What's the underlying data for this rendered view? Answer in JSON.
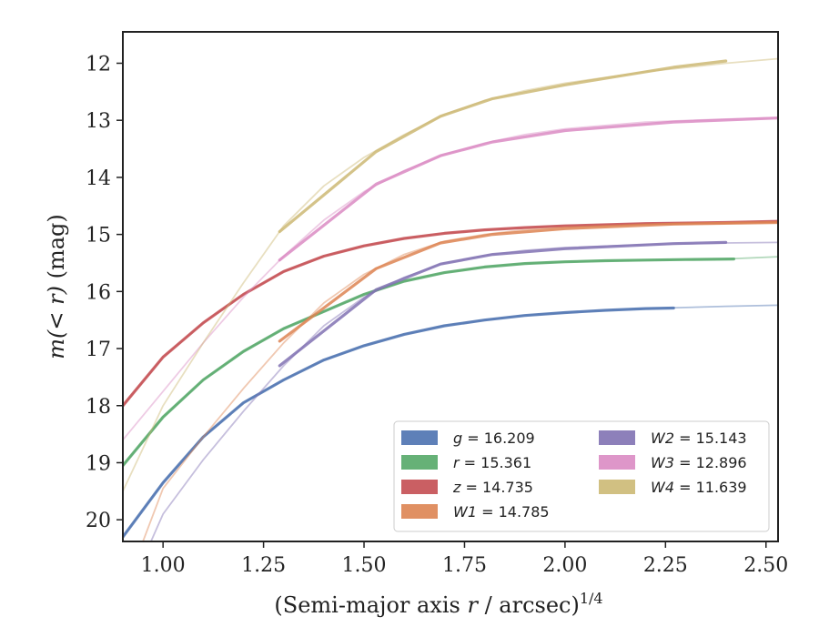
{
  "chart_data": {
    "type": "line",
    "title": "",
    "xlabel": "(Semi-major axis r / arcsec)",
    "xlabel_exponent": "1/4",
    "ylabel": "m(< r) (mag)",
    "xlim": [
      0.9,
      2.53
    ],
    "ylim": [
      20.38,
      11.45
    ],
    "y_inverted": true,
    "x_ticks": [
      "1.00",
      "1.25",
      "1.50",
      "1.75",
      "2.00",
      "2.25",
      "2.50"
    ],
    "y_ticks": [
      "12",
      "13",
      "14",
      "15",
      "16",
      "17",
      "18",
      "19",
      "20"
    ],
    "grid": false,
    "legend_position": "lower-right",
    "legend_columns": 2,
    "series": [
      {
        "name": "g = 16.209",
        "color": "#4c72b0",
        "thick": [
          [
            0.9,
            20.3
          ],
          [
            1.0,
            19.35
          ],
          [
            1.1,
            18.55
          ],
          [
            1.2,
            17.95
          ],
          [
            1.3,
            17.55
          ],
          [
            1.4,
            17.2
          ],
          [
            1.5,
            16.95
          ],
          [
            1.6,
            16.75
          ],
          [
            1.7,
            16.6
          ],
          [
            1.8,
            16.5
          ],
          [
            1.9,
            16.42
          ],
          [
            2.0,
            16.37
          ],
          [
            2.1,
            16.33
          ],
          [
            2.2,
            16.3
          ],
          [
            2.27,
            16.29
          ]
        ],
        "model": [
          [
            0.9,
            20.3
          ],
          [
            1.0,
            19.35
          ],
          [
            1.1,
            18.55
          ],
          [
            1.2,
            17.95
          ],
          [
            1.3,
            17.55
          ],
          [
            1.4,
            17.2
          ],
          [
            1.5,
            16.95
          ],
          [
            1.6,
            16.75
          ],
          [
            1.7,
            16.6
          ],
          [
            1.8,
            16.5
          ],
          [
            1.9,
            16.42
          ],
          [
            2.0,
            16.37
          ],
          [
            2.1,
            16.33
          ],
          [
            2.2,
            16.3
          ],
          [
            2.3,
            16.28
          ],
          [
            2.4,
            16.26
          ],
          [
            2.53,
            16.24
          ]
        ]
      },
      {
        "name": "r = 15.361",
        "color": "#55a868",
        "thick": [
          [
            0.9,
            19.05
          ],
          [
            1.0,
            18.2
          ],
          [
            1.1,
            17.55
          ],
          [
            1.2,
            17.05
          ],
          [
            1.3,
            16.65
          ],
          [
            1.4,
            16.35
          ],
          [
            1.5,
            16.05
          ],
          [
            1.6,
            15.82
          ],
          [
            1.7,
            15.67
          ],
          [
            1.8,
            15.57
          ],
          [
            1.9,
            15.51
          ],
          [
            2.0,
            15.48
          ],
          [
            2.1,
            15.46
          ],
          [
            2.2,
            15.45
          ],
          [
            2.3,
            15.44
          ],
          [
            2.42,
            15.43
          ]
        ],
        "model": [
          [
            0.9,
            19.05
          ],
          [
            1.0,
            18.2
          ],
          [
            1.1,
            17.55
          ],
          [
            1.2,
            17.05
          ],
          [
            1.3,
            16.65
          ],
          [
            1.4,
            16.35
          ],
          [
            1.5,
            16.05
          ],
          [
            1.6,
            15.82
          ],
          [
            1.7,
            15.67
          ],
          [
            1.8,
            15.57
          ],
          [
            1.9,
            15.51
          ],
          [
            2.0,
            15.48
          ],
          [
            2.1,
            15.46
          ],
          [
            2.2,
            15.45
          ],
          [
            2.3,
            15.44
          ],
          [
            2.4,
            15.43
          ],
          [
            2.53,
            15.39
          ]
        ]
      },
      {
        "name": "z = 14.735",
        "color": "#c44e52",
        "thick": [
          [
            0.9,
            18.0
          ],
          [
            1.0,
            17.15
          ],
          [
            1.1,
            16.55
          ],
          [
            1.2,
            16.05
          ],
          [
            1.3,
            15.65
          ],
          [
            1.4,
            15.38
          ],
          [
            1.5,
            15.2
          ],
          [
            1.6,
            15.07
          ],
          [
            1.7,
            14.98
          ],
          [
            1.8,
            14.92
          ],
          [
            1.9,
            14.88
          ],
          [
            2.0,
            14.85
          ],
          [
            2.1,
            14.83
          ],
          [
            2.2,
            14.81
          ],
          [
            2.3,
            14.8
          ],
          [
            2.4,
            14.79
          ],
          [
            2.53,
            14.77
          ]
        ],
        "model": [
          [
            0.9,
            18.0
          ],
          [
            1.0,
            17.15
          ],
          [
            1.1,
            16.55
          ],
          [
            1.2,
            16.05
          ],
          [
            1.3,
            15.65
          ],
          [
            1.4,
            15.38
          ],
          [
            1.5,
            15.2
          ],
          [
            1.6,
            15.07
          ],
          [
            1.7,
            14.98
          ],
          [
            1.8,
            14.92
          ],
          [
            1.9,
            14.88
          ],
          [
            2.0,
            14.85
          ],
          [
            2.1,
            14.83
          ],
          [
            2.2,
            14.81
          ],
          [
            2.3,
            14.8
          ],
          [
            2.4,
            14.79
          ],
          [
            2.53,
            14.77
          ]
        ]
      },
      {
        "name": "W1 = 14.785",
        "color": "#dd8452",
        "thick": [
          [
            1.29,
            16.87
          ],
          [
            1.53,
            15.6
          ],
          [
            1.69,
            15.15
          ],
          [
            1.82,
            15.0
          ],
          [
            2.0,
            14.9
          ],
          [
            2.27,
            14.82
          ],
          [
            2.53,
            14.79
          ]
        ],
        "model": [
          [
            0.95,
            20.38
          ],
          [
            1.0,
            19.45
          ],
          [
            1.1,
            18.55
          ],
          [
            1.2,
            17.7
          ],
          [
            1.3,
            16.9
          ],
          [
            1.4,
            16.2
          ],
          [
            1.5,
            15.7
          ],
          [
            1.6,
            15.35
          ],
          [
            1.7,
            15.12
          ],
          [
            1.8,
            15.0
          ],
          [
            1.9,
            14.92
          ],
          [
            2.0,
            14.87
          ],
          [
            2.2,
            14.82
          ],
          [
            2.4,
            14.8
          ],
          [
            2.53,
            14.79
          ]
        ]
      },
      {
        "name": "W2 = 15.143",
        "color": "#8172b3",
        "thick": [
          [
            1.29,
            17.3
          ],
          [
            1.53,
            15.97
          ],
          [
            1.69,
            15.52
          ],
          [
            1.82,
            15.35
          ],
          [
            2.0,
            15.25
          ],
          [
            2.27,
            15.16
          ],
          [
            2.4,
            15.14
          ]
        ],
        "model": [
          [
            0.97,
            20.38
          ],
          [
            1.0,
            19.9
          ],
          [
            1.1,
            18.95
          ],
          [
            1.2,
            18.1
          ],
          [
            1.3,
            17.3
          ],
          [
            1.4,
            16.6
          ],
          [
            1.5,
            16.1
          ],
          [
            1.6,
            15.75
          ],
          [
            1.7,
            15.5
          ],
          [
            1.8,
            15.37
          ],
          [
            1.9,
            15.28
          ],
          [
            2.0,
            15.23
          ],
          [
            2.2,
            15.18
          ],
          [
            2.4,
            15.15
          ],
          [
            2.53,
            15.14
          ]
        ]
      },
      {
        "name": "W3 = 12.896",
        "color": "#da8bc3",
        "thick": [
          [
            1.29,
            15.45
          ],
          [
            1.53,
            14.12
          ],
          [
            1.69,
            13.62
          ],
          [
            1.82,
            13.38
          ],
          [
            2.0,
            13.18
          ],
          [
            2.27,
            13.03
          ],
          [
            2.53,
            12.96
          ]
        ],
        "model": [
          [
            0.9,
            18.6
          ],
          [
            1.0,
            17.75
          ],
          [
            1.1,
            16.9
          ],
          [
            1.2,
            16.1
          ],
          [
            1.3,
            15.38
          ],
          [
            1.4,
            14.75
          ],
          [
            1.5,
            14.25
          ],
          [
            1.6,
            13.88
          ],
          [
            1.7,
            13.6
          ],
          [
            1.8,
            13.4
          ],
          [
            1.9,
            13.25
          ],
          [
            2.0,
            13.15
          ],
          [
            2.2,
            13.03
          ],
          [
            2.4,
            12.98
          ],
          [
            2.53,
            12.95
          ]
        ]
      },
      {
        "name": "W4 = 11.639",
        "color": "#ccb974",
        "thick": [
          [
            1.29,
            14.95
          ],
          [
            1.53,
            13.55
          ],
          [
            1.69,
            12.93
          ],
          [
            1.82,
            12.62
          ],
          [
            2.0,
            12.38
          ],
          [
            2.27,
            12.07
          ],
          [
            2.4,
            11.96
          ]
        ],
        "model": [
          [
            0.9,
            19.5
          ],
          [
            1.0,
            18.0
          ],
          [
            1.1,
            16.9
          ],
          [
            1.2,
            15.85
          ],
          [
            1.3,
            14.85
          ],
          [
            1.4,
            14.15
          ],
          [
            1.5,
            13.65
          ],
          [
            1.6,
            13.25
          ],
          [
            1.7,
            12.9
          ],
          [
            1.8,
            12.65
          ],
          [
            1.9,
            12.48
          ],
          [
            2.0,
            12.35
          ],
          [
            2.2,
            12.15
          ],
          [
            2.4,
            12.0
          ],
          [
            2.53,
            11.92
          ]
        ]
      }
    ]
  }
}
